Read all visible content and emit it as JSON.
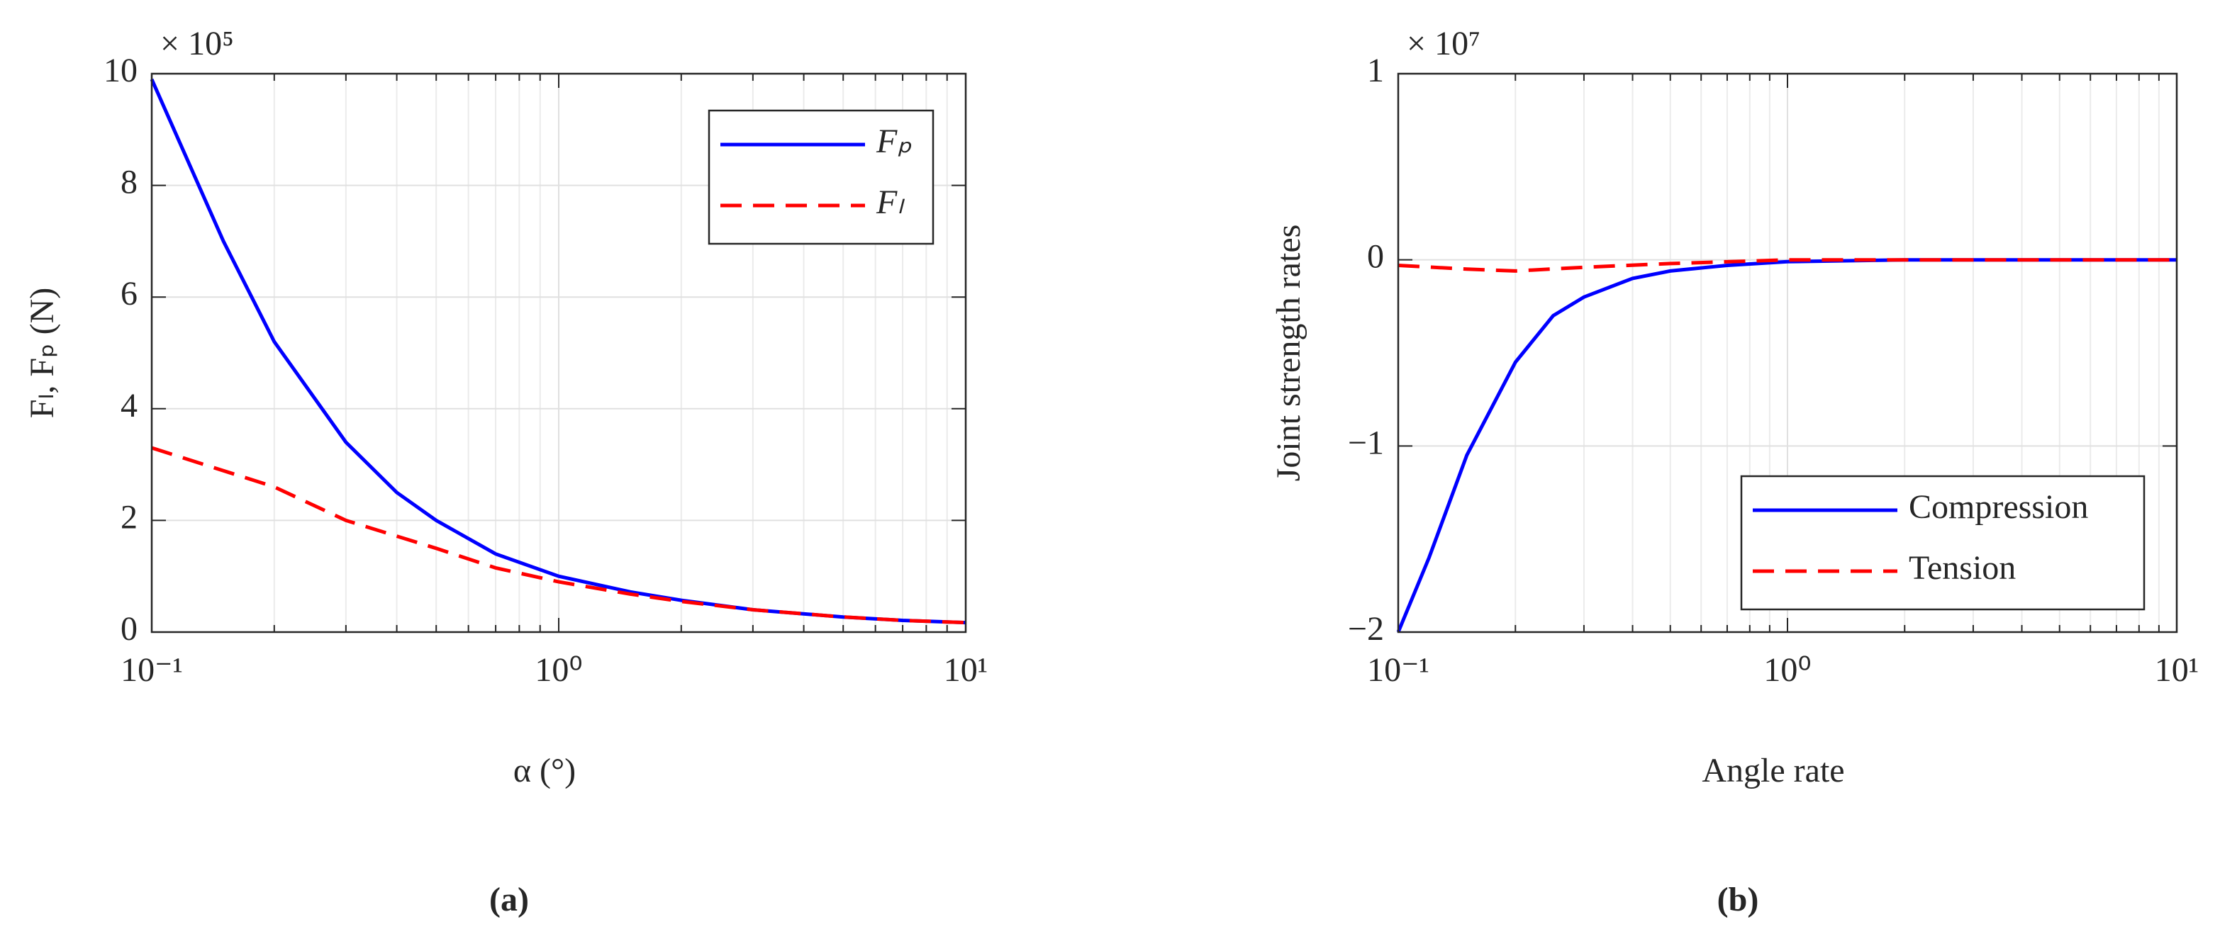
{
  "chart_data": [
    {
      "type": "line",
      "panel_label": "(a)",
      "x_label": "α (°)",
      "y_label": "Fₗ, Fₚ (N)",
      "y_multiplier": "× 10⁵",
      "xscale": "log",
      "xlim": [
        0.1,
        10
      ],
      "xticks": [
        {
          "value": 0.1,
          "label": "10⁻¹"
        },
        {
          "value": 1,
          "label": "10⁰"
        },
        {
          "value": 10,
          "label": "10¹"
        }
      ],
      "xminorticks": [
        0.2,
        0.3,
        0.4,
        0.5,
        0.6,
        0.7,
        0.8,
        0.9,
        2,
        3,
        4,
        5,
        6,
        7,
        8,
        9
      ],
      "ylim": [
        0,
        10
      ],
      "yticks": [
        0,
        2,
        4,
        6,
        8,
        10
      ],
      "grid": true,
      "legend": "upper right",
      "series": [
        {
          "name": "Fₚ",
          "color": "#0000ff",
          "dash": "solid",
          "x": [
            0.1,
            0.15,
            0.2,
            0.3,
            0.4,
            0.5,
            0.7,
            1,
            1.5,
            2,
            3,
            5,
            7,
            10
          ],
          "values": [
            9.9,
            7.0,
            5.2,
            3.4,
            2.5,
            2.0,
            1.4,
            1.0,
            0.72,
            0.57,
            0.4,
            0.27,
            0.21,
            0.17
          ]
        },
        {
          "name": "Fₗ",
          "color": "#ff0000",
          "dash": "dashed",
          "x": [
            0.1,
            0.2,
            0.3,
            0.5,
            0.7,
            1,
            1.5,
            2,
            3,
            5,
            7,
            10
          ],
          "values": [
            3.3,
            2.6,
            2.0,
            1.5,
            1.15,
            0.9,
            0.68,
            0.55,
            0.4,
            0.27,
            0.21,
            0.17
          ]
        }
      ]
    },
    {
      "type": "line",
      "panel_label": "(b)",
      "x_label": "Angle rate",
      "y_label": "Joint strength rates",
      "y_multiplier": "× 10⁷",
      "xscale": "log",
      "xlim": [
        0.1,
        10
      ],
      "xticks": [
        {
          "value": 0.1,
          "label": "10⁻¹"
        },
        {
          "value": 1,
          "label": "10⁰"
        },
        {
          "value": 10,
          "label": "10¹"
        }
      ],
      "xminorticks": [
        0.2,
        0.3,
        0.4,
        0.5,
        0.6,
        0.7,
        0.8,
        0.9,
        2,
        3,
        4,
        5,
        6,
        7,
        8,
        9
      ],
      "ylim": [
        -2,
        1
      ],
      "yticks": [
        {
          "value": -2,
          "label": "−2"
        },
        {
          "value": -1,
          "label": "−1"
        },
        0,
        1
      ],
      "grid": true,
      "legend": "lower right",
      "series": [
        {
          "name": "Compression",
          "color": "#0000ff",
          "dash": "solid",
          "x": [
            0.1,
            0.12,
            0.15,
            0.2,
            0.25,
            0.3,
            0.4,
            0.5,
            0.7,
            1,
            2,
            5,
            10
          ],
          "values": [
            -2.0,
            -1.6,
            -1.05,
            -0.55,
            -0.3,
            -0.2,
            -0.1,
            -0.06,
            -0.03,
            -0.01,
            0,
            0,
            0
          ]
        },
        {
          "name": "Tension",
          "color": "#ff0000",
          "dash": "dashed",
          "x": [
            0.1,
            0.15,
            0.2,
            0.3,
            0.5,
            1,
            10
          ],
          "values": [
            -0.03,
            -0.05,
            -0.06,
            -0.04,
            -0.02,
            0,
            0
          ]
        }
      ]
    }
  ]
}
